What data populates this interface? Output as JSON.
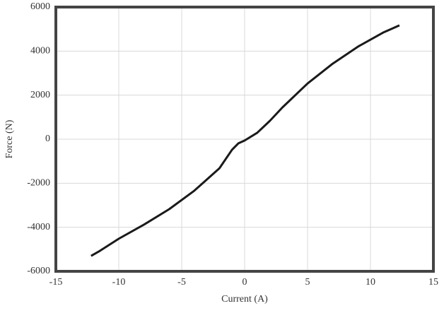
{
  "chart_data": {
    "type": "line",
    "x_label": "Current (A)",
    "y_label": "Force (N)",
    "x": [
      -12.2,
      -11.5,
      -10,
      -8,
      -6,
      -4,
      -2,
      -1,
      -0.5,
      0,
      1,
      2,
      3,
      5,
      7,
      9,
      11,
      11.8,
      12.3
    ],
    "series": [
      {
        "color": "#1a1a1a",
        "values": [
          -5300,
          -5070,
          -4520,
          -3880,
          -3180,
          -2340,
          -1320,
          -480,
          -190,
          -60,
          290,
          830,
          1440,
          2530,
          3430,
          4200,
          4840,
          5040,
          5170
        ]
      }
    ],
    "xlim": [
      -15,
      15
    ],
    "xticks": [
      -15,
      -10,
      -5,
      0,
      5,
      10,
      15
    ],
    "ylim": [
      -6000,
      6000
    ],
    "yticks": [
      -6000,
      -4000,
      -2000,
      0,
      2000,
      4000,
      6000
    ],
    "grid": true
  }
}
